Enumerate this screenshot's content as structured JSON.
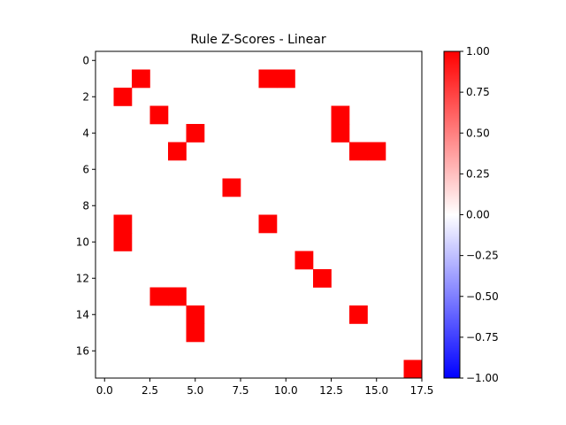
{
  "chart_data": {
    "type": "heatmap",
    "title": "Rule Z-Scores - Linear",
    "xlabel": "",
    "ylabel": "",
    "rows": 18,
    "cols": 18,
    "xlim": [
      -0.5,
      17.5
    ],
    "ylim": [
      17.5,
      -0.5
    ],
    "x_ticks": [
      0,
      2.5,
      5,
      7.5,
      10,
      12.5,
      15,
      17.5
    ],
    "x_tick_labels": [
      "0.0",
      "2.5",
      "5.0",
      "7.5",
      "10.0",
      "12.5",
      "15.0",
      "17.5"
    ],
    "y_ticks": [
      0,
      2,
      4,
      6,
      8,
      10,
      12,
      14,
      16
    ],
    "y_tick_labels": [
      "0",
      "2",
      "4",
      "6",
      "8",
      "10",
      "12",
      "14",
      "16"
    ],
    "background_value": 0,
    "cells": [
      {
        "row": 1,
        "col": 2,
        "value": 1.0
      },
      {
        "row": 1,
        "col": 9,
        "value": 1.0
      },
      {
        "row": 1,
        "col": 10,
        "value": 1.0
      },
      {
        "row": 2,
        "col": 1,
        "value": 1.0
      },
      {
        "row": 3,
        "col": 3,
        "value": 1.0
      },
      {
        "row": 3,
        "col": 13,
        "value": 1.0
      },
      {
        "row": 4,
        "col": 5,
        "value": 1.0
      },
      {
        "row": 4,
        "col": 13,
        "value": 1.0
      },
      {
        "row": 5,
        "col": 4,
        "value": 1.0
      },
      {
        "row": 5,
        "col": 14,
        "value": 1.0
      },
      {
        "row": 5,
        "col": 15,
        "value": 1.0
      },
      {
        "row": 7,
        "col": 7,
        "value": 1.0
      },
      {
        "row": 9,
        "col": 1,
        "value": 1.0
      },
      {
        "row": 9,
        "col": 9,
        "value": 1.0
      },
      {
        "row": 10,
        "col": 1,
        "value": 1.0
      },
      {
        "row": 11,
        "col": 11,
        "value": 1.0
      },
      {
        "row": 12,
        "col": 12,
        "value": 1.0
      },
      {
        "row": 13,
        "col": 3,
        "value": 1.0
      },
      {
        "row": 13,
        "col": 4,
        "value": 1.0
      },
      {
        "row": 14,
        "col": 5,
        "value": 1.0
      },
      {
        "row": 14,
        "col": 14,
        "value": 1.0
      },
      {
        "row": 15,
        "col": 5,
        "value": 1.0
      },
      {
        "row": 17,
        "col": 17,
        "value": 1.0
      }
    ],
    "colorbar": {
      "colormap": "bwr",
      "min": -1.0,
      "max": 1.0,
      "ticks": [
        1.0,
        0.75,
        0.5,
        0.25,
        0.0,
        -0.25,
        -0.5,
        -0.75,
        -1.0
      ],
      "tick_labels": [
        "1.00",
        "0.75",
        "0.50",
        "0.25",
        "0.00",
        "−0.25",
        "−0.50",
        "−0.75",
        "−1.00"
      ],
      "colors": {
        "low": "#0000ff",
        "mid": "#ffffff",
        "high": "#ff0000"
      }
    }
  }
}
